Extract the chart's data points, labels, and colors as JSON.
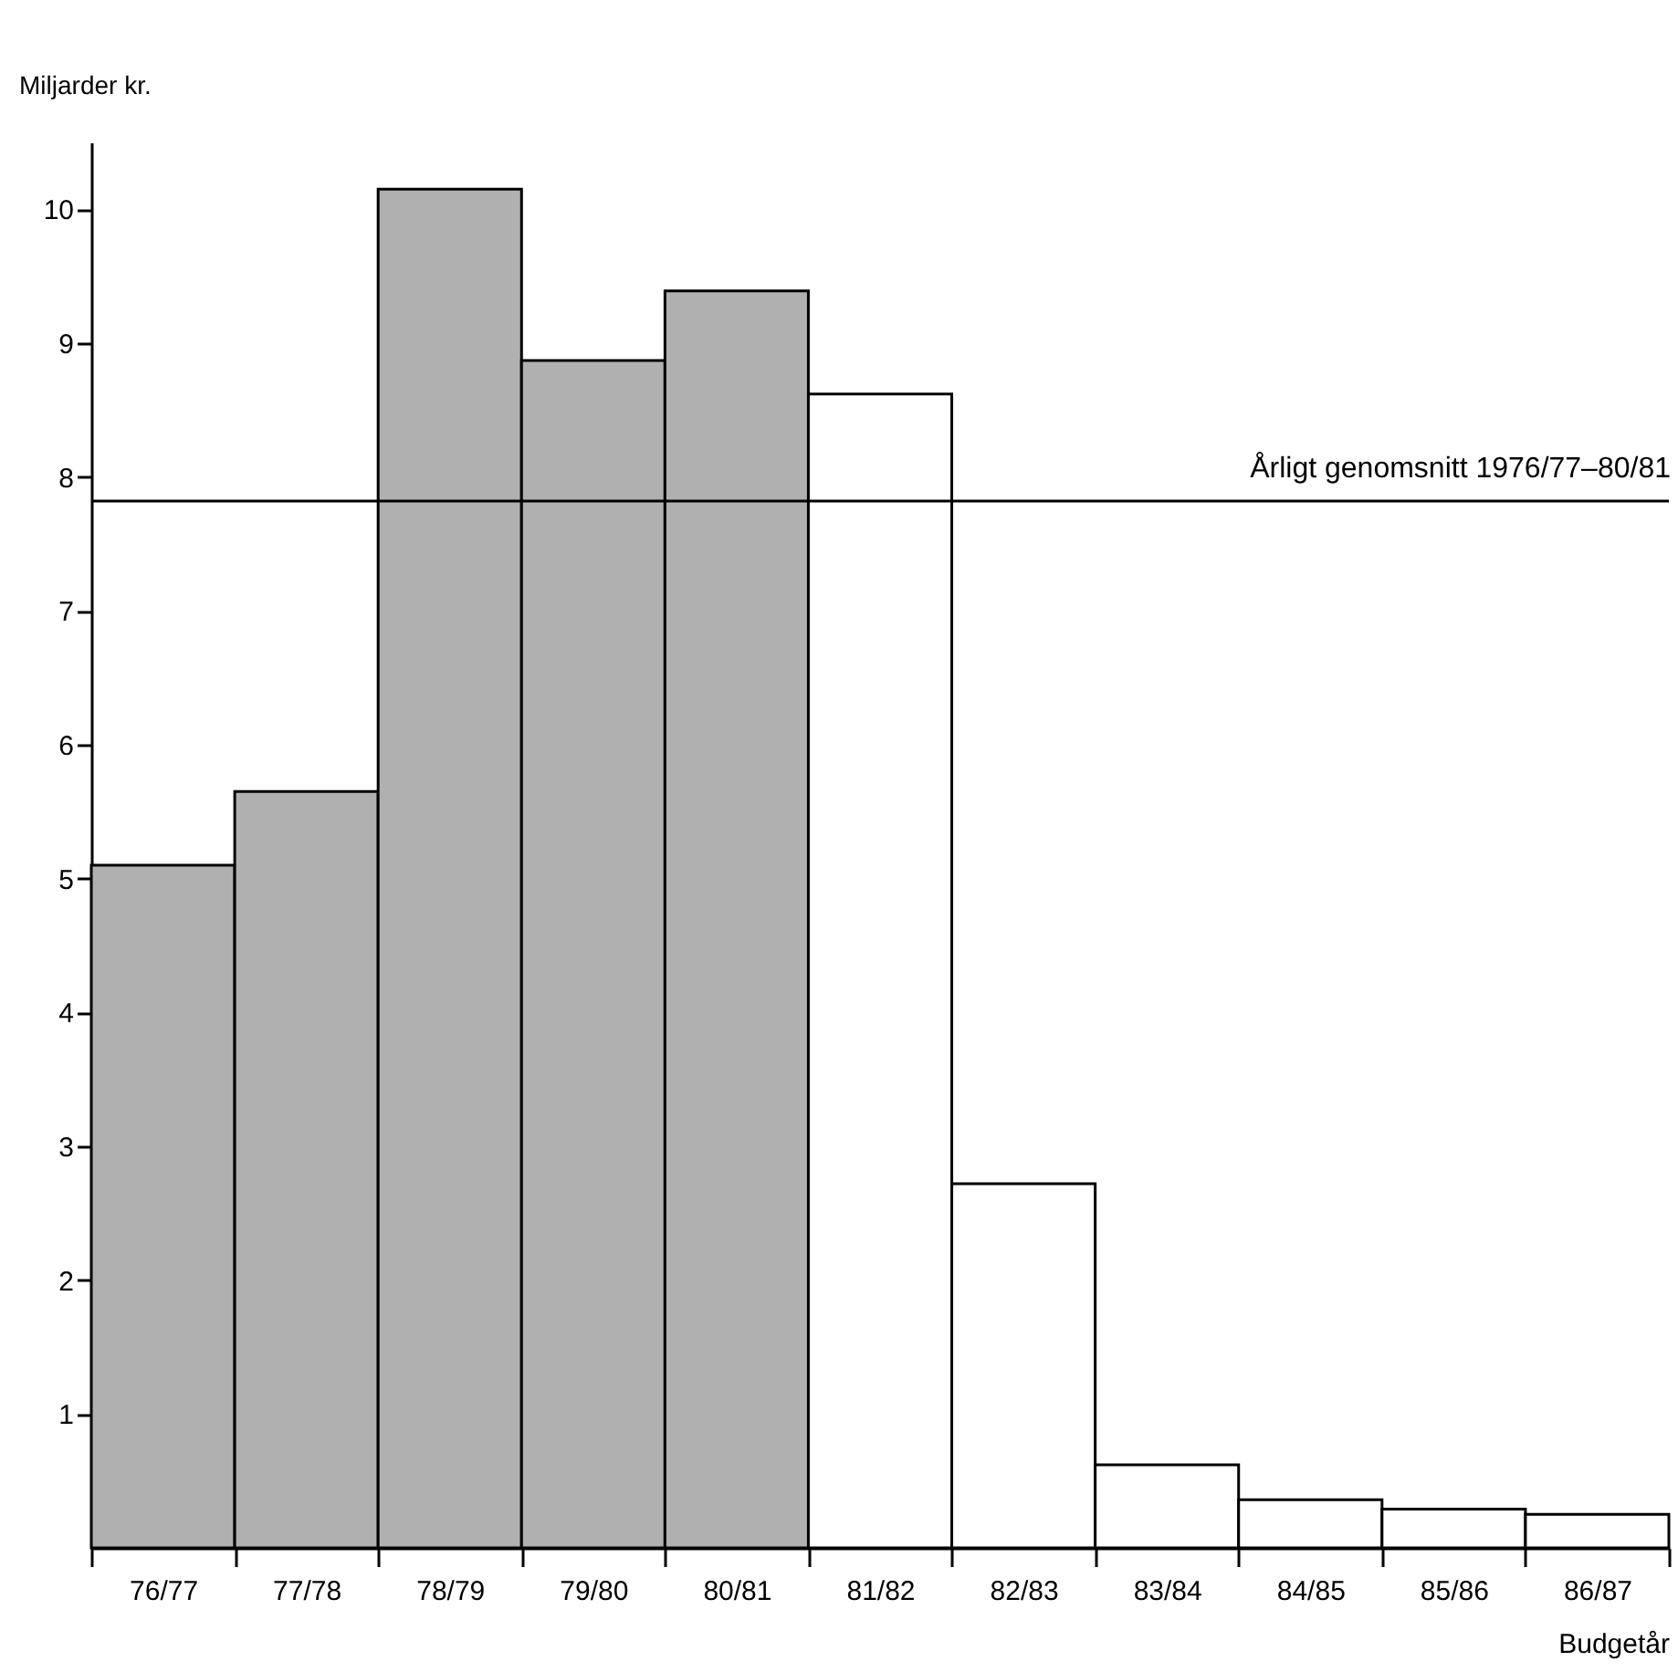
{
  "chart_data": {
    "type": "bar",
    "xlabel": "Budgetår",
    "ylabel": "Miljarder kr.",
    "categories": [
      "76/77",
      "77/78",
      "78/79",
      "79/80",
      "80/81",
      "81/82",
      "82/83",
      "83/84",
      "84/85",
      "85/86",
      "86/87"
    ],
    "values": [
      5.1,
      5.65,
      10.15,
      8.87,
      9.39,
      8.62,
      2.72,
      0.62,
      0.36,
      0.29,
      0.25
    ],
    "colors": [
      "#b0b0b0",
      "#b0b0b0",
      "#b0b0b0",
      "#b0b0b0",
      "#b0b0b0",
      "#ffffff",
      "#ffffff",
      "#ffffff",
      "#ffffff",
      "#ffffff",
      "#ffffff"
    ],
    "ylim": [
      0,
      10.5
    ],
    "yticks": [
      1,
      2,
      3,
      4,
      5,
      6,
      7,
      8,
      9,
      10
    ],
    "grid": false,
    "ref_lines": [
      {
        "axis": "y",
        "value": 7.82,
        "label": "Årligt genomsnitt 1976/77–80/81",
        "color": "#000000"
      }
    ]
  }
}
